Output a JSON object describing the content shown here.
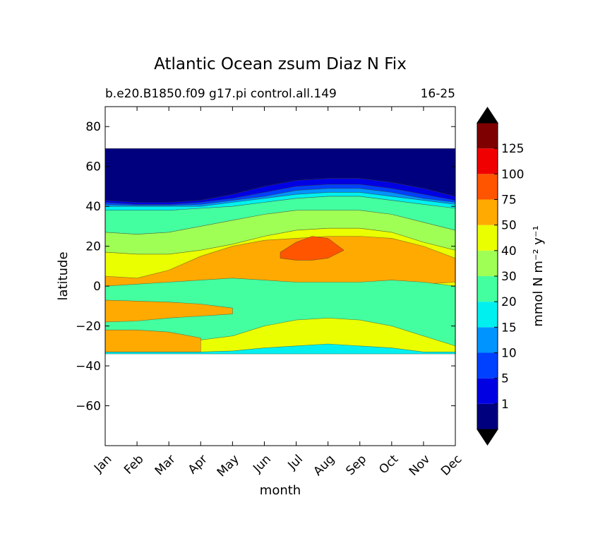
{
  "chart_data": {
    "type": "heatmap",
    "title": "Atlantic Ocean zsum Diaz N Fix",
    "subtitle_left": "b.e20.B1850.f09 g17.pi control.all.149",
    "subtitle_right": "16-25",
    "xlabel": "month",
    "ylabel": "latitude",
    "x_categories": [
      "Jan",
      "Feb",
      "Mar",
      "Apr",
      "May",
      "Jun",
      "Jul",
      "Aug",
      "Sep",
      "Oct",
      "Nov",
      "Dec"
    ],
    "xlim": [
      1,
      12
    ],
    "ylim": [
      -80,
      90
    ],
    "y_ticks": [
      80,
      60,
      40,
      20,
      0,
      -20,
      -40,
      -60
    ],
    "y_tick_labels": [
      "80",
      "60",
      "40",
      "20",
      "0",
      "−20",
      "−40",
      "−60"
    ],
    "data_lat_range": [
      -34,
      69
    ],
    "colorbar": {
      "label": "mmol N m⁻² y⁻¹",
      "levels": [
        1,
        5,
        10,
        15,
        20,
        30,
        40,
        50,
        75,
        100,
        125
      ],
      "level_labels": [
        "1",
        "5",
        "10",
        "15",
        "20",
        "30",
        "40",
        "50",
        "75",
        "100",
        "125"
      ],
      "colors": [
        "#00007f",
        "#0000e3",
        "#0040ff",
        "#0094ff",
        "#00f0ef",
        "#44ffa0",
        "#a0ff55",
        "#eaff00",
        "#ffaa00",
        "#ff5500",
        "#f00000",
        "#7f0000"
      ],
      "extend": "both",
      "extend_colors": [
        "#000000",
        "#000000"
      ]
    },
    "contour_bands": [
      {
        "level": "<1",
        "region": "north",
        "upper": [
          69,
          69,
          69,
          69,
          69,
          69,
          69,
          69,
          69,
          69,
          69,
          69
        ],
        "lower": [
          43,
          42,
          42,
          43,
          46,
          50,
          53,
          54,
          54,
          52,
          49,
          45
        ]
      },
      {
        "level": "1-5",
        "region": "north",
        "upper": [
          43,
          42,
          42,
          43,
          46,
          50,
          53,
          54,
          54,
          52,
          49,
          45
        ],
        "lower": [
          42,
          41,
          41,
          42,
          44,
          47,
          50,
          51,
          51,
          49,
          46,
          43
        ]
      },
      {
        "level": "5-10",
        "region": "north",
        "upper": [
          42,
          41,
          41,
          42,
          44,
          47,
          50,
          51,
          51,
          49,
          46,
          43
        ],
        "lower": [
          41,
          40.5,
          40.5,
          41,
          43,
          45,
          48,
          49,
          49,
          47,
          44,
          42
        ]
      },
      {
        "level": "10-15",
        "region": "north",
        "upper": [
          41,
          40.5,
          40.5,
          41,
          43,
          45,
          48,
          49,
          49,
          47,
          44,
          42
        ],
        "lower": [
          40,
          40,
          40,
          40,
          42,
          44,
          46,
          47,
          47,
          45,
          43,
          41
        ]
      },
      {
        "level": "15-20",
        "region": "north",
        "upper": [
          40,
          40,
          40,
          40,
          42,
          44,
          46,
          47,
          47,
          45,
          43,
          41
        ],
        "lower": [
          38,
          38,
          38,
          39,
          40,
          42,
          44,
          45,
          45,
          43,
          41,
          39
        ]
      },
      {
        "level": "20-30",
        "region": "north",
        "upper": [
          38,
          38,
          38,
          39,
          40,
          42,
          44,
          45,
          45,
          43,
          41,
          39
        ],
        "lower": [
          27,
          26,
          27,
          30,
          33,
          36,
          38,
          38,
          38,
          36,
          32,
          28
        ]
      },
      {
        "level": "30-40",
        "region": "north",
        "upper": [
          27,
          26,
          27,
          30,
          33,
          36,
          38,
          38,
          38,
          36,
          32,
          28
        ],
        "lower": [
          17,
          16,
          16,
          18,
          21,
          25,
          28,
          29,
          29,
          27,
          22,
          18
        ]
      },
      {
        "level": "40-50",
        "region": "north",
        "upper": [
          17,
          16,
          16,
          18,
          21,
          25,
          28,
          29,
          29,
          27,
          22,
          18
        ],
        "lower": [
          -6,
          -6,
          -5,
          -5,
          -4,
          -3,
          -2,
          -2,
          -2,
          -2,
          -3,
          -4
        ]
      },
      {
        "level": "50-75",
        "region": "center",
        "upper": [
          5,
          4,
          8,
          15,
          20,
          23,
          24,
          25,
          25,
          24,
          20,
          14
        ],
        "lower": [
          -1,
          -1,
          0,
          0,
          0,
          1,
          1,
          1,
          1,
          1,
          1,
          2
        ]
      },
      {
        "level": "75-100",
        "region": "core",
        "x": [
          6.5,
          7,
          7.5,
          8,
          8.5,
          8,
          7.5,
          7,
          6.5
        ],
        "y": [
          17,
          22,
          25,
          24,
          18,
          14,
          13,
          13,
          14
        ]
      },
      {
        "level": "20-30",
        "region": "south-center",
        "upper": [
          0,
          1,
          2,
          3,
          4,
          3,
          2,
          2,
          2,
          3,
          2,
          0
        ],
        "lower": [
          -30,
          -30,
          -29,
          -27,
          -25,
          -20,
          -17,
          -16,
          -17,
          -20,
          -25,
          -30
        ]
      },
      {
        "level": "15-20",
        "region": "south",
        "upper": [
          -33,
          -33,
          -33,
          -33,
          -32.5,
          -31,
          -30,
          -29,
          -30,
          -31,
          -33,
          -33
        ],
        "lower": [
          -34,
          -34,
          -34,
          -34,
          -34,
          -34,
          -34,
          -34,
          -34,
          -34,
          -34,
          -34
        ]
      },
      {
        "level": "50-75",
        "region": "southwest",
        "upper": [
          -7,
          -7.5,
          -8,
          -9,
          -11
        ],
        "lower": [
          -18,
          -17.5,
          -16,
          -15,
          -14
        ]
      },
      {
        "level": "50-75",
        "region": "southwest-2",
        "upper": [
          -22,
          -22,
          -23,
          -26
        ],
        "lower": [
          -33,
          -33,
          -33,
          -33
        ]
      }
    ]
  }
}
